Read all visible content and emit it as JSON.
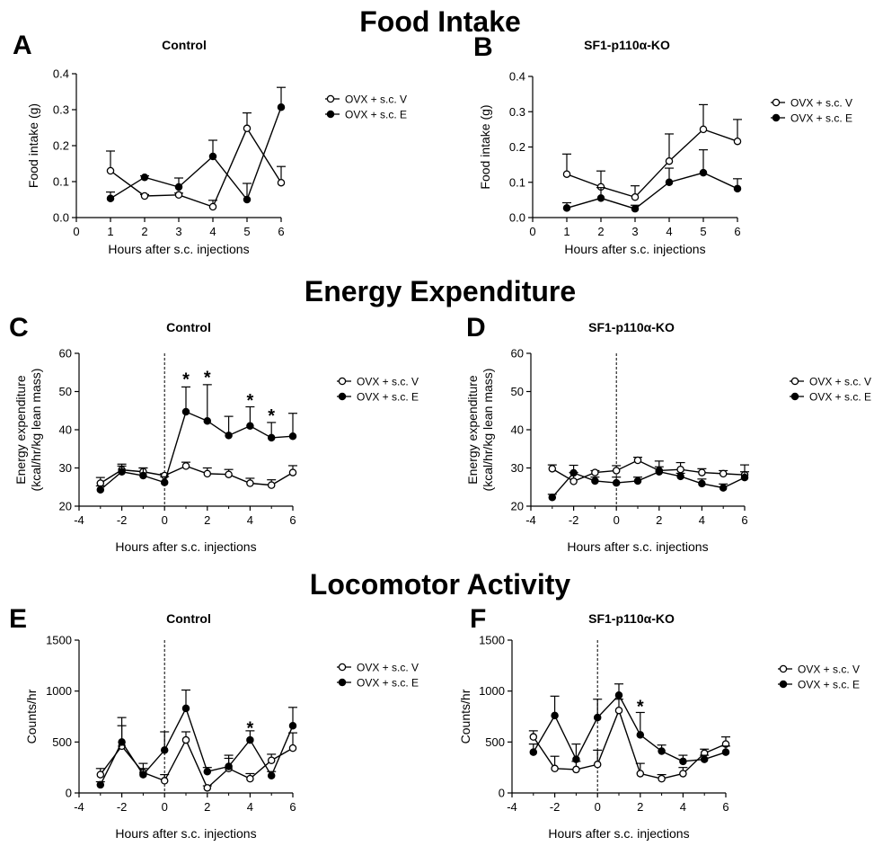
{
  "sections": [
    {
      "title": "Food Intake"
    },
    {
      "title": "Energy Expenditure"
    },
    {
      "title": "Locomotor Activity"
    }
  ],
  "chart_data": [
    {
      "letter": "A",
      "title": "Control",
      "type": "line",
      "xlabel": "Hours after s.c. injections",
      "ylabel": "Food intake (g)",
      "xlim": [
        0,
        6
      ],
      "ylim": [
        0,
        0.4
      ],
      "xticks": [
        0,
        1,
        2,
        3,
        4,
        5,
        6
      ],
      "yticks": [
        0.0,
        0.1,
        0.2,
        0.3,
        0.4
      ],
      "yticklabels": [
        "0.0",
        "0.1",
        "0.2",
        "0.3",
        "0.4"
      ],
      "vline": null,
      "legend": "right",
      "series": [
        {
          "name": "OVX + s.c. V",
          "marker": "open",
          "x": [
            1,
            2,
            3,
            4,
            5,
            6
          ],
          "y": [
            0.13,
            0.06,
            0.063,
            0.03,
            0.248,
            0.097
          ],
          "err": [
            0.055,
            0.004,
            0.005,
            0.018,
            0.043,
            0.045
          ]
        },
        {
          "name": "OVX + s.c. E",
          "marker": "filled",
          "x": [
            1,
            2,
            3,
            4,
            5,
            6
          ],
          "y": [
            0.053,
            0.112,
            0.085,
            0.17,
            0.05,
            0.307
          ],
          "err": [
            0.018,
            0.004,
            0.025,
            0.045,
            0.045,
            0.055
          ]
        }
      ],
      "stars": []
    },
    {
      "letter": "B",
      "title": "SF1-p110α-KO",
      "type": "line",
      "xlabel": "Hours after s.c. injections",
      "ylabel": "Food intake (g)",
      "xlim": [
        0,
        6
      ],
      "ylim": [
        0,
        0.4
      ],
      "xticks": [
        0,
        1,
        2,
        3,
        4,
        5,
        6
      ],
      "yticks": [
        0.0,
        0.1,
        0.2,
        0.3,
        0.4
      ],
      "yticklabels": [
        "0.0",
        "0.1",
        "0.2",
        "0.3",
        "0.4"
      ],
      "vline": null,
      "legend": "right",
      "series": [
        {
          "name": "OVX + s.c. V",
          "marker": "open",
          "x": [
            1,
            2,
            3,
            4,
            5,
            6
          ],
          "y": [
            0.123,
            0.087,
            0.058,
            0.16,
            0.25,
            0.216
          ],
          "err": [
            0.057,
            0.045,
            0.032,
            0.077,
            0.07,
            0.062
          ]
        },
        {
          "name": "OVX + s.c. E",
          "marker": "filled",
          "x": [
            1,
            2,
            3,
            4,
            5,
            6
          ],
          "y": [
            0.027,
            0.055,
            0.025,
            0.1,
            0.127,
            0.082
          ],
          "err": [
            0.015,
            0.03,
            0.01,
            0.04,
            0.065,
            0.028
          ]
        }
      ],
      "stars": []
    },
    {
      "letter": "C",
      "title": "Control",
      "type": "line",
      "xlabel": "Hours after s.c. injections",
      "ylabel": [
        "Energy expenditure",
        "(kcal/hr/kg lean mass)"
      ],
      "xlim": [
        -4,
        6
      ],
      "ylim": [
        20,
        60
      ],
      "xticks": [
        -4,
        -2,
        0,
        2,
        4,
        6
      ],
      "yticks": [
        20,
        30,
        40,
        50,
        60
      ],
      "yticklabels": [
        "20",
        "30",
        "40",
        "50",
        "60"
      ],
      "vline": 0,
      "legend": "right",
      "series": [
        {
          "name": "OVX + s.c. V",
          "marker": "open",
          "x": [
            -3,
            -2,
            -1,
            0,
            1,
            2,
            3,
            4,
            5,
            6
          ],
          "y": [
            26,
            29.5,
            29,
            28,
            30.5,
            28.5,
            28.3,
            26,
            25.5,
            28.8
          ],
          "err": [
            1.5,
            1.5,
            1,
            0.5,
            1,
            1.5,
            1.3,
            1.3,
            1.4,
            1.8
          ]
        },
        {
          "name": "OVX + s.c. E",
          "marker": "filled",
          "x": [
            -3,
            -2,
            -1,
            0,
            1,
            2,
            3,
            4,
            5,
            6
          ],
          "y": [
            24.3,
            29,
            28,
            26.2,
            44.7,
            42.3,
            38.5,
            41,
            37.9,
            38.3
          ],
          "err": [
            1,
            1.5,
            2,
            1.5,
            6.5,
            9.5,
            5,
            5,
            4,
            6
          ]
        }
      ],
      "stars": [
        {
          "x": 1,
          "y": 53.5
        },
        {
          "x": 2,
          "y": 54
        },
        {
          "x": 4,
          "y": 48
        },
        {
          "x": 5,
          "y": 44
        }
      ]
    },
    {
      "letter": "D",
      "title": "SF1-p110α-KO",
      "type": "line",
      "xlabel": "Hours after s.c. injections",
      "ylabel": [
        "Energy expenditure",
        "(kcal/hr/kg lean mass)"
      ],
      "xlim": [
        -4,
        6
      ],
      "ylim": [
        20,
        60
      ],
      "xticks": [
        -4,
        -2,
        0,
        2,
        4,
        6
      ],
      "yticks": [
        20,
        30,
        40,
        50,
        60
      ],
      "yticklabels": [
        "20",
        "30",
        "40",
        "50",
        "60"
      ],
      "vline": 0,
      "legend": "right",
      "series": [
        {
          "name": "OVX + s.c. V",
          "marker": "open",
          "x": [
            -3,
            -2,
            -1,
            0,
            1,
            2,
            3,
            4,
            5,
            6
          ],
          "y": [
            29.8,
            26.5,
            28.8,
            29.3,
            32,
            29.3,
            29.6,
            28.8,
            28.5,
            28.2
          ],
          "err": [
            1,
            2.3,
            0.5,
            1.3,
            0.8,
            1,
            1.8,
            1,
            0.8,
            2.6
          ]
        },
        {
          "name": "OVX + s.c. E",
          "marker": "filled",
          "x": [
            -3,
            -2,
            -1,
            0,
            1,
            2,
            3,
            4,
            5,
            6
          ],
          "y": [
            22.3,
            28.7,
            26.6,
            26.1,
            26.6,
            29,
            27.8,
            25.9,
            24.8,
            27.5
          ],
          "err": [
            0.8,
            2,
            1,
            1.5,
            1,
            2.8,
            0.8,
            1.2,
            1,
            1.5
          ]
        }
      ],
      "stars": []
    },
    {
      "letter": "E",
      "title": "Control",
      "type": "line",
      "xlabel": "Hours after s.c. injections",
      "ylabel": "Counts/hr",
      "xlim": [
        -4,
        6
      ],
      "ylim": [
        0,
        1500
      ],
      "xticks": [
        -4,
        -2,
        0,
        2,
        4,
        6
      ],
      "yticks": [
        0,
        500,
        1000,
        1500
      ],
      "yticklabels": [
        "0",
        "500",
        "1000",
        "1500"
      ],
      "vline": 0,
      "legend": "right",
      "series": [
        {
          "name": "OVX + s.c. V",
          "marker": "open",
          "x": [
            -3,
            -2,
            -1,
            0,
            1,
            2,
            3,
            4,
            5,
            6
          ],
          "y": [
            180,
            460,
            200,
            120,
            520,
            50,
            240,
            140,
            320,
            440
          ],
          "err": [
            60,
            280,
            90,
            60,
            80,
            20,
            100,
            50,
            60,
            150
          ]
        },
        {
          "name": "OVX + s.c. E",
          "marker": "filled",
          "x": [
            -3,
            -2,
            -1,
            0,
            1,
            2,
            3,
            4,
            5,
            6
          ],
          "y": [
            80,
            500,
            180,
            420,
            830,
            210,
            260,
            520,
            170,
            660
          ],
          "err": [
            30,
            160,
            60,
            180,
            180,
            40,
            110,
            90,
            40,
            180
          ]
        }
      ],
      "stars": [
        {
          "x": 4,
          "y": 650
        }
      ]
    },
    {
      "letter": "F",
      "title": "SF1-p110α-KO",
      "type": "line",
      "xlabel": "Hours after s.c. injections",
      "ylabel": "Counts/hr",
      "xlim": [
        -4,
        6
      ],
      "ylim": [
        0,
        1500
      ],
      "xticks": [
        -4,
        -2,
        0,
        2,
        4,
        6
      ],
      "yticks": [
        0,
        500,
        1000,
        1500
      ],
      "yticklabels": [
        "0",
        "500",
        "1000",
        "1500"
      ],
      "vline": 0,
      "legend": "right",
      "series": [
        {
          "name": "OVX + s.c. V",
          "marker": "open",
          "x": [
            -3,
            -2,
            -1,
            0,
            1,
            2,
            3,
            4,
            5,
            6
          ],
          "y": [
            550,
            240,
            230,
            280,
            810,
            190,
            140,
            190,
            390,
            480
          ],
          "err": [
            60,
            120,
            80,
            140,
            110,
            100,
            40,
            60,
            40,
            70
          ]
        },
        {
          "name": "OVX + s.c. E",
          "marker": "filled",
          "x": [
            -3,
            -2,
            -1,
            0,
            1,
            2,
            3,
            4,
            5,
            6
          ],
          "y": [
            400,
            760,
            330,
            740,
            960,
            570,
            410,
            310,
            330,
            400
          ],
          "err": [
            80,
            190,
            150,
            180,
            110,
            220,
            60,
            60,
            40,
            60
          ]
        }
      ],
      "stars": [
        {
          "x": 2,
          "y": 860
        }
      ]
    }
  ]
}
